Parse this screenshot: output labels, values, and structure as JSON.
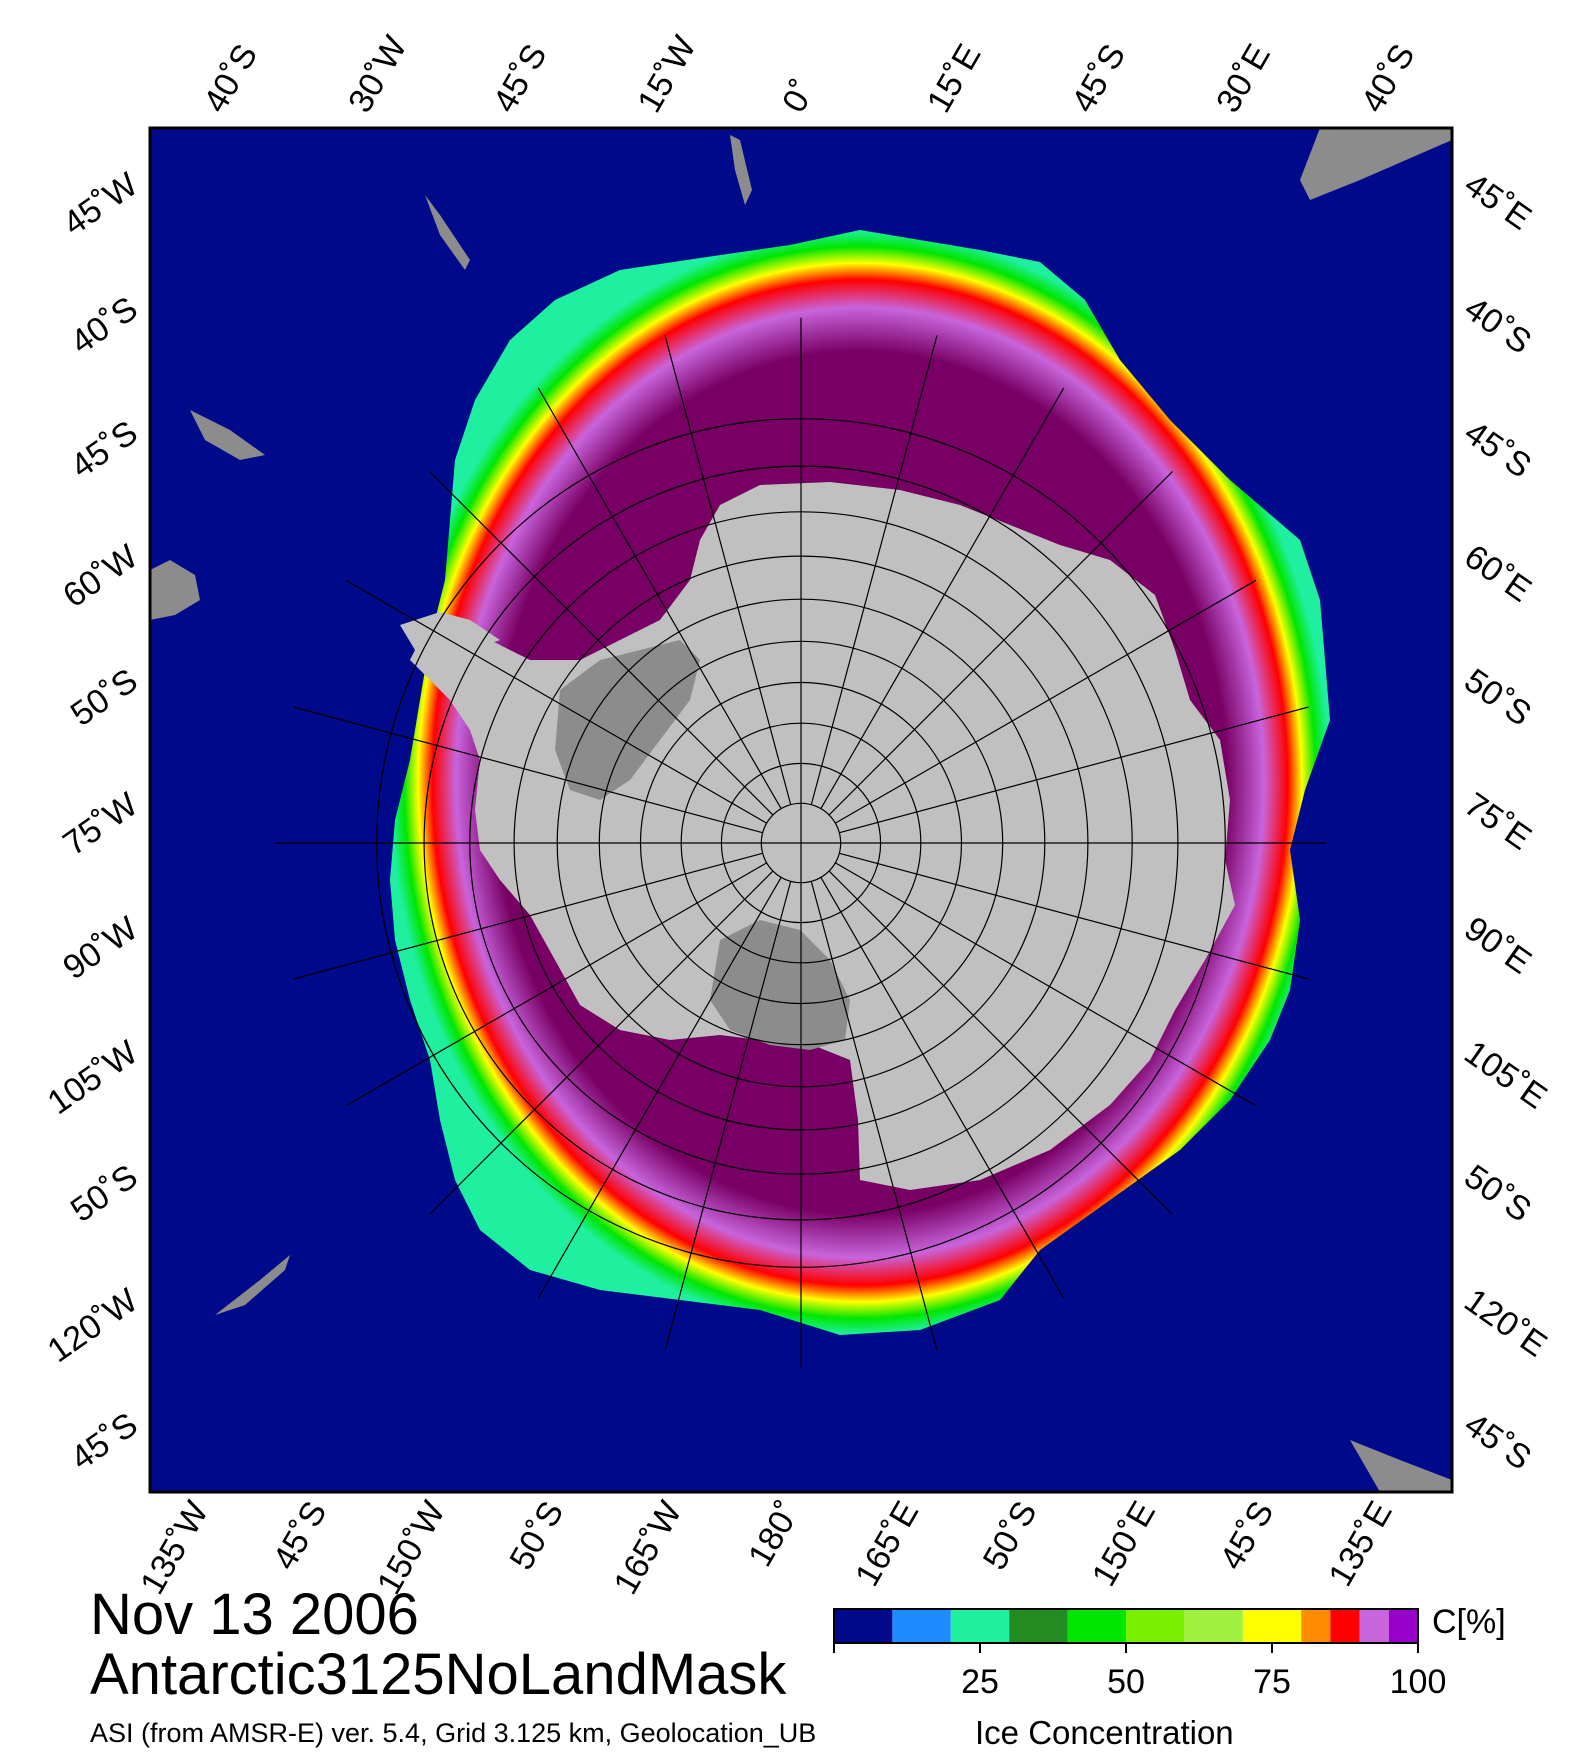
{
  "title": "Nov 13 2006",
  "subtitle": "Antarctic3125NoLandMask",
  "source": "ASI (from AMSR-E) ver. 5.4,  Grid 3.125 km, Geolocation_UB",
  "legend": {
    "title": "Ice Concentration",
    "unit": "C[%]",
    "ticks": [
      "25",
      "50",
      "75",
      "100"
    ],
    "tick_values": [
      25,
      50,
      75,
      100
    ],
    "range": [
      0,
      100
    ],
    "bins": [
      {
        "from": 0,
        "to": 10,
        "color": "#000a8a"
      },
      {
        "from": 10,
        "to": 20,
        "color": "#1e8cff"
      },
      {
        "from": 20,
        "to": 30,
        "color": "#1ef0a0"
      },
      {
        "from": 30,
        "to": 40,
        "color": "#228b22"
      },
      {
        "from": 40,
        "to": 50,
        "color": "#00e600"
      },
      {
        "from": 50,
        "to": 60,
        "color": "#78f000"
      },
      {
        "from": 60,
        "to": 70,
        "color": "#a0f040"
      },
      {
        "from": 70,
        "to": 80,
        "color": "#ffff00"
      },
      {
        "from": 80,
        "to": 85,
        "color": "#ff8c00"
      },
      {
        "from": 85,
        "to": 90,
        "color": "#ff0000"
      },
      {
        "from": 90,
        "to": 95,
        "color": "#c864dc"
      },
      {
        "from": 95,
        "to": 100,
        "color": "#9600c8"
      }
    ]
  },
  "map_colors": {
    "ocean": "#000a8a",
    "land_ice": "#c0c0c0",
    "ice_shelf": "#8c8c8c",
    "land": "#8c8c8c",
    "pack_ice": "#780064",
    "graticule": "#000000"
  },
  "graticule": {
    "meridians_deg": [
      -165,
      -150,
      -135,
      -120,
      -105,
      -90,
      -75,
      -60,
      -45,
      -30,
      -15,
      0,
      15,
      30,
      45,
      60,
      75,
      90,
      105,
      120,
      135,
      150,
      165,
      180
    ],
    "parallels_deg": [
      -85,
      -80,
      -75,
      -70,
      -65,
      -60,
      -55,
      -50,
      -45,
      -40
    ]
  },
  "labels": {
    "left": [
      "45˚W",
      "40˚S",
      "45˚S",
      "60˚W",
      "50˚S",
      "75˚W",
      "90˚W",
      "105˚W",
      "50˚S",
      "120˚W",
      "45˚S"
    ],
    "right": [
      "45˚E",
      "40˚S",
      "45˚S",
      "60˚E",
      "50˚S",
      "75˚E",
      "90˚E",
      "105˚E",
      "50˚S",
      "120˚E",
      "45˚S"
    ],
    "top": [
      "40˚S",
      "30˚W",
      "45˚S",
      "15˚W",
      "0˚",
      "15˚E",
      "45˚S",
      "30˚E",
      "40˚S"
    ],
    "bottom": [
      "135˚W",
      "45˚S",
      "150˚W",
      "50˚S",
      "165˚W",
      "180˚",
      "165˚E",
      "50˚S",
      "150˚E",
      "45˚S",
      "135˚E"
    ]
  }
}
